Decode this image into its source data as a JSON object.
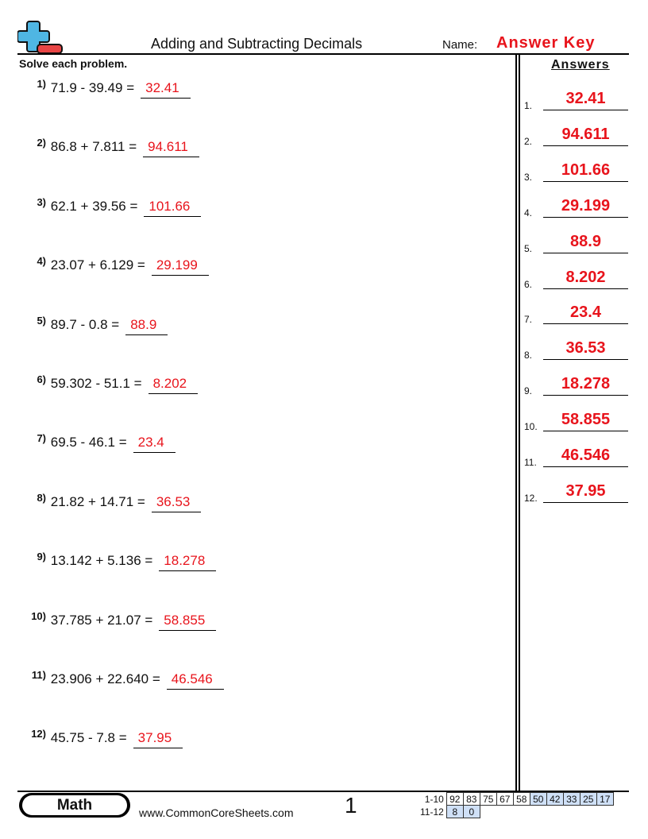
{
  "header": {
    "title": "Adding and Subtracting Decimals",
    "name_label": "Name:",
    "name_value": "Answer Key",
    "logo_colors": {
      "plus": "#4fb6e3",
      "minus": "#e84545"
    }
  },
  "instructions": "Solve each problem.",
  "answers_heading": "Answers",
  "problems": [
    {
      "num": "1)",
      "expr": "71.9 - 39.49  =",
      "answer": "32.41"
    },
    {
      "num": "2)",
      "expr": "86.8 + 7.811  =",
      "answer": "94.611"
    },
    {
      "num": "3)",
      "expr": "62.1 + 39.56  =",
      "answer": "101.66"
    },
    {
      "num": "4)",
      "expr": "23.07 + 6.129  =",
      "answer": "29.199"
    },
    {
      "num": "5)",
      "expr": "89.7 - 0.8  =",
      "answer": "88.9"
    },
    {
      "num": "6)",
      "expr": "59.302 - 51.1  =",
      "answer": "8.202"
    },
    {
      "num": "7)",
      "expr": "69.5 - 46.1  =",
      "answer": "23.4"
    },
    {
      "num": "8)",
      "expr": "21.82 + 14.71  =",
      "answer": "36.53"
    },
    {
      "num": "9)",
      "expr": "13.142 + 5.136  =",
      "answer": "18.278"
    },
    {
      "num": "10)",
      "expr": "37.785 + 21.07  =",
      "answer": "58.855"
    },
    {
      "num": "11)",
      "expr": "23.906 + 22.640  =",
      "answer": "46.546"
    },
    {
      "num": "12)",
      "expr": "45.75 - 7.8  =",
      "answer": "37.95"
    }
  ],
  "answer_key": [
    {
      "n": "1.",
      "v": "32.41"
    },
    {
      "n": "2.",
      "v": "94.611"
    },
    {
      "n": "3.",
      "v": "101.66"
    },
    {
      "n": "4.",
      "v": "29.199"
    },
    {
      "n": "5.",
      "v": "88.9"
    },
    {
      "n": "6.",
      "v": "8.202"
    },
    {
      "n": "7.",
      "v": "23.4"
    },
    {
      "n": "8.",
      "v": "36.53"
    },
    {
      "n": "9.",
      "v": "18.278"
    },
    {
      "n": "10.",
      "v": "58.855"
    },
    {
      "n": "11.",
      "v": "46.546"
    },
    {
      "n": "12.",
      "v": "37.95"
    }
  ],
  "footer": {
    "subject": "Math",
    "site": "www.CommonCoreSheets.com",
    "page": "1",
    "score_rows": [
      {
        "label": "1-10",
        "cells": [
          "92",
          "83",
          "75",
          "67",
          "58",
          "50",
          "42",
          "33",
          "25",
          "17"
        ]
      },
      {
        "label": "11-12",
        "cells": [
          "8",
          "0"
        ]
      }
    ]
  }
}
